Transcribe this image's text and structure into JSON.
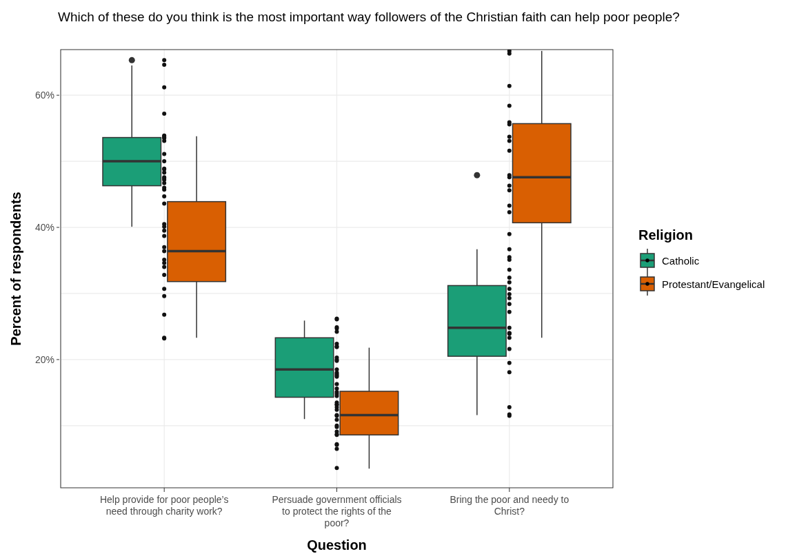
{
  "chart_data": {
    "type": "box",
    "title": "Which of these do you think is the most important way followers of the Christian faith can help poor people?",
    "xlabel": "Question",
    "ylabel": "Percent of respondents",
    "legend_title": "Religion",
    "categories": [
      "Help provide for poor people’s need through charity work?",
      "Persuade government officials to protect the rights of the poor?",
      "Bring the poor and needy to Christ?"
    ],
    "ylim": [
      0.6,
      66.9
    ],
    "yticks": [
      {
        "value": 10,
        "label": null
      },
      {
        "value": 20,
        "label": "20%"
      },
      {
        "value": 30,
        "label": null
      },
      {
        "value": 40,
        "label": "40%"
      },
      {
        "value": 50,
        "label": null
      },
      {
        "value": 60,
        "label": "60%"
      }
    ],
    "grid": true,
    "legend": "right",
    "marker": "circle",
    "series": [
      {
        "name": "Catholic",
        "color": "#1b9e77",
        "boxes": [
          {
            "low": 40.1,
            "q1": 46.3,
            "median": 50.0,
            "q3": 53.6,
            "high": 64.5,
            "outliers": [
              65.3
            ]
          },
          {
            "low": 11.0,
            "q1": 14.3,
            "median": 18.5,
            "q3": 23.3,
            "high": 25.9
          },
          {
            "low": 11.6,
            "q1": 20.5,
            "median": 24.8,
            "q3": 31.2,
            "high": 36.7,
            "outliers": [
              47.9
            ]
          }
        ]
      },
      {
        "name": "Protestant/Evangelical",
        "color": "#d95f02",
        "boxes": [
          {
            "low": 23.3,
            "q1": 31.8,
            "median": 36.4,
            "q3": 43.9,
            "high": 53.8
          },
          {
            "low": 3.5,
            "q1": 8.6,
            "median": 11.6,
            "q3": 15.2,
            "high": 21.8
          },
          {
            "low": 23.3,
            "q1": 40.7,
            "median": 47.6,
            "q3": 55.7,
            "high": 66.7
          }
        ]
      },
      {
        "type": "scatter",
        "color": "#111111",
        "x": [
          "Help provide for poor people’s need through charity work?",
          "Help provide for poor people’s need through charity work?",
          "Help provide for poor people’s need through charity work?",
          "Help provide for poor people’s need through charity work?",
          "Help provide for poor people’s need through charity work?",
          "Help provide for poor people’s need through charity work?",
          "Help provide for poor people’s need through charity work?",
          "Help provide for poor people’s need through charity work?",
          "Help provide for poor people’s need through charity work?",
          "Help provide for poor people’s need through charity work?",
          "Help provide for poor people’s need through charity work?",
          "Help provide for poor people’s need through charity work?",
          "Help provide for poor people’s need through charity work?",
          "Help provide for poor people’s need through charity work?",
          "Help provide for poor people’s need through charity work?",
          "Help provide for poor people’s need through charity work?",
          "Help provide for poor people’s need through charity work?",
          "Help provide for poor people’s need through charity work?",
          "Help provide for poor people’s need through charity work?",
          "Help provide for poor people’s need through charity work?",
          "Help provide for poor people’s need through charity work?",
          "Help provide for poor people’s need through charity work?",
          "Help provide for poor people’s need through charity work?",
          "Help provide for poor people’s need through charity work?",
          "Help provide for poor people’s need through charity work?",
          "Help provide for poor people’s need through charity work?",
          "Help provide for poor people’s need through charity work?",
          "Help provide for poor people’s need through charity work?",
          "Help provide for poor people’s need through charity work?",
          "Help provide for poor people’s need through charity work?",
          "Help provide for poor people’s need through charity work?",
          "Help provide for poor people’s need through charity work?",
          "Help provide for poor people’s need through charity work?",
          "Help provide for poor people’s need through charity work?",
          "Help provide for poor people’s need through charity work?",
          "Help provide for poor people’s need through charity work?",
          "Help provide for poor people’s need through charity work?",
          "Persuade government officials to protect the rights of the poor?",
          "Persuade government officials to protect the rights of the poor?",
          "Persuade government officials to protect the rights of the poor?",
          "Persuade government officials to protect the rights of the poor?",
          "Persuade government officials to protect the rights of the poor?",
          "Persuade government officials to protect the rights of the poor?",
          "Persuade government officials to protect the rights of the poor?",
          "Persuade government officials to protect the rights of the poor?",
          "Persuade government officials to protect the rights of the poor?",
          "Persuade government officials to protect the rights of the poor?",
          "Persuade government officials to protect the rights of the poor?",
          "Persuade government officials to protect the rights of the poor?",
          "Persuade government officials to protect the rights of the poor?",
          "Persuade government officials to protect the rights of the poor?",
          "Persuade government officials to protect the rights of the poor?",
          "Persuade government officials to protect the rights of the poor?",
          "Persuade government officials to protect the rights of the poor?",
          "Persuade government officials to protect the rights of the poor?",
          "Persuade government officials to protect the rights of the poor?",
          "Persuade government officials to protect the rights of the poor?",
          "Persuade government officials to protect the rights of the poor?",
          "Persuade government officials to protect the rights of the poor?",
          "Persuade government officials to protect the rights of the poor?",
          "Persuade government officials to protect the rights of the poor?",
          "Persuade government officials to protect the rights of the poor?",
          "Persuade government officials to protect the rights of the poor?",
          "Persuade government officials to protect the rights of the poor?",
          "Persuade government officials to protect the rights of the poor?",
          "Persuade government officials to protect the rights of the poor?",
          "Persuade government officials to protect the rights of the poor?",
          "Persuade government officials to protect the rights of the poor?",
          "Persuade government officials to protect the rights of the poor?",
          "Persuade government officials to protect the rights of the poor?",
          "Persuade government officials to protect the rights of the poor?",
          "Persuade government officials to protect the rights of the poor?",
          "Persuade government officials to protect the rights of the poor?",
          "Persuade government officials to protect the rights of the poor?",
          "Persuade government officials to protect the rights of the poor?",
          "Bring the poor and needy to Christ?",
          "Bring the poor and needy to Christ?",
          "Bring the poor and needy to Christ?",
          "Bring the poor and needy to Christ?",
          "Bring the poor and needy to Christ?",
          "Bring the poor and needy to Christ?",
          "Bring the poor and needy to Christ?",
          "Bring the poor and needy to Christ?",
          "Bring the poor and needy to Christ?",
          "Bring the poor and needy to Christ?",
          "Bring the poor and needy to Christ?",
          "Bring the poor and needy to Christ?",
          "Bring the poor and needy to Christ?",
          "Bring the poor and needy to Christ?",
          "Bring the poor and needy to Christ?",
          "Bring the poor and needy to Christ?",
          "Bring the poor and needy to Christ?",
          "Bring the poor and needy to Christ?",
          "Bring the poor and needy to Christ?",
          "Bring the poor and needy to Christ?",
          "Bring the poor and needy to Christ?",
          "Bring the poor and needy to Christ?",
          "Bring the poor and needy to Christ?",
          "Bring the poor and needy to Christ?",
          "Bring the poor and needy to Christ?",
          "Bring the poor and needy to Christ?",
          "Bring the poor and needy to Christ?",
          "Bring the poor and needy to Christ?",
          "Bring the poor and needy to Christ?",
          "Bring the poor and needy to Christ?",
          "Bring the poor and needy to Christ?",
          "Bring the poor and needy to Christ?",
          "Bring the poor and needy to Christ?",
          "Bring the poor and needy to Christ?",
          "Bring the poor and needy to Christ?",
          "Bring the poor and needy to Christ?",
          "Bring the poor and needy to Christ?",
          "Bring the poor and needy to Christ?"
        ],
        "values": [
          65.3,
          64.6,
          61.2,
          57.2,
          53.9,
          53.8,
          53.6,
          53.5,
          53.1,
          51.1,
          50.0,
          48.9,
          48.8,
          48.3,
          47.6,
          47.4,
          47.2,
          46.7,
          46.0,
          45.7,
          44.7,
          43.6,
          40.5,
          40.1,
          39.5,
          38.7,
          37.0,
          36.4,
          35.1,
          34.6,
          34.0,
          32.8,
          30.7,
          29.6,
          26.8,
          23.3,
          23.2,
          26.2,
          26.1,
          24.9,
          24.7,
          24.2,
          22.4,
          22.0,
          21.9,
          20.3,
          20.0,
          19.8,
          18.5,
          18.0,
          17.8,
          17.6,
          17.4,
          16.3,
          15.6,
          15.1,
          14.8,
          14.5,
          13.5,
          13.2,
          13.2,
          12.8,
          12.4,
          11.5,
          11.6,
          10.9,
          10.0,
          9.8,
          9.1,
          8.7,
          8.6,
          7.1,
          7.2,
          6.5,
          3.6,
          66.7,
          66.3,
          61.4,
          58.4,
          55.9,
          55.6,
          53.7,
          53.1,
          51.6,
          47.9,
          47.6,
          46.3,
          45.6,
          43.3,
          42.3,
          39.0,
          36.7,
          35.5,
          35.1,
          33.6,
          32.4,
          31.7,
          30.7,
          29.9,
          29.3,
          28.4,
          27.2,
          24.8,
          24.0,
          23.9,
          24.0,
          23.3,
          21.6,
          19.5,
          18.1,
          12.8,
          11.7,
          11.5
        ]
      }
    ]
  }
}
